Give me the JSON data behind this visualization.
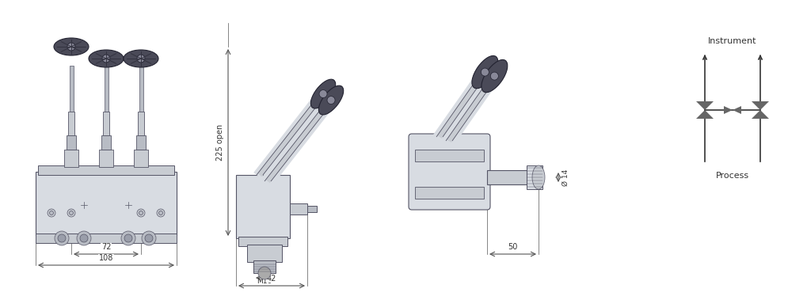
{
  "bg_color": "#ffffff",
  "body_color": "#d8dce2",
  "body_edge": "#555566",
  "body_dark": "#b8bcc4",
  "body_mid": "#c8ccd2",
  "handle_color": "#4a4a58",
  "dim_color": "#555555",
  "dim_text_color": "#333333",
  "symbol_color": "#666666",
  "dim_72": "72",
  "dim_108": "108",
  "dim_225": "225 open",
  "dim_m10": "M10",
  "dim_42": "42",
  "dim_50": "50",
  "dim_14": "Ø 14",
  "label_instrument": "Instrument",
  "label_process": "Process"
}
